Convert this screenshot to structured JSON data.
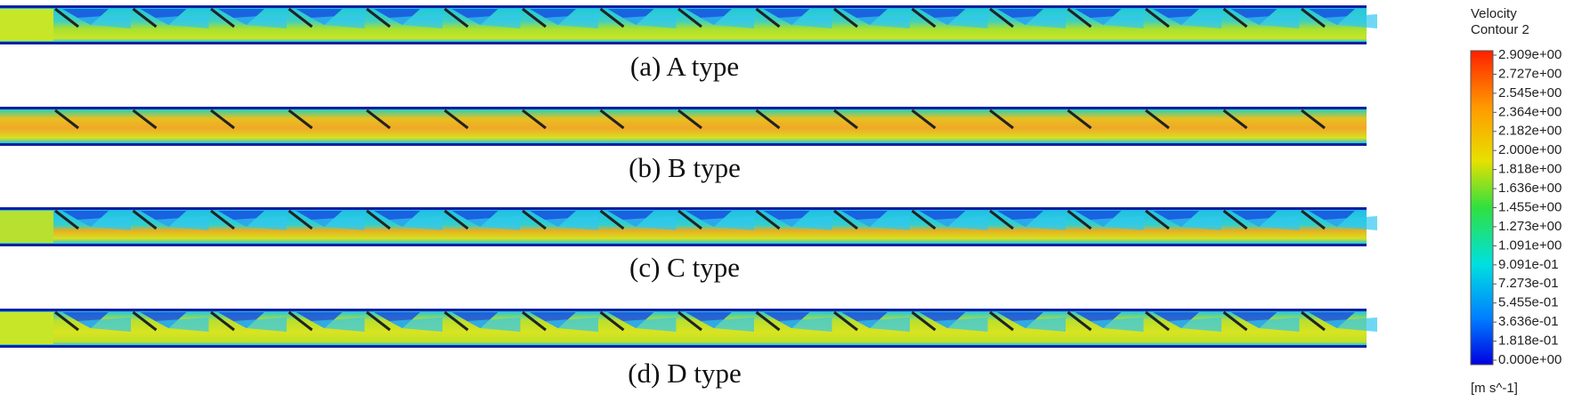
{
  "panels": [
    {
      "caption": "(a) A type",
      "style": "a"
    },
    {
      "caption": "(b) B type",
      "style": "b"
    },
    {
      "caption": "(c) C type",
      "style": "c"
    },
    {
      "caption": "(d) D type",
      "style": "d"
    }
  ],
  "legend": {
    "title": "Velocity",
    "subtitle": "Contour 2",
    "labels": [
      "2.909e+00",
      "2.727e+00",
      "2.545e+00",
      "2.364e+00",
      "2.182e+00",
      "2.000e+00",
      "1.818e+00",
      "1.636e+00",
      "1.455e+00",
      "1.273e+00",
      "1.091e+00",
      "9.091e-01",
      "7.273e-01",
      "5.455e-01",
      "3.636e-01",
      "1.818e-01",
      "0.000e+00"
    ],
    "unit": "[m s^-1]"
  }
}
